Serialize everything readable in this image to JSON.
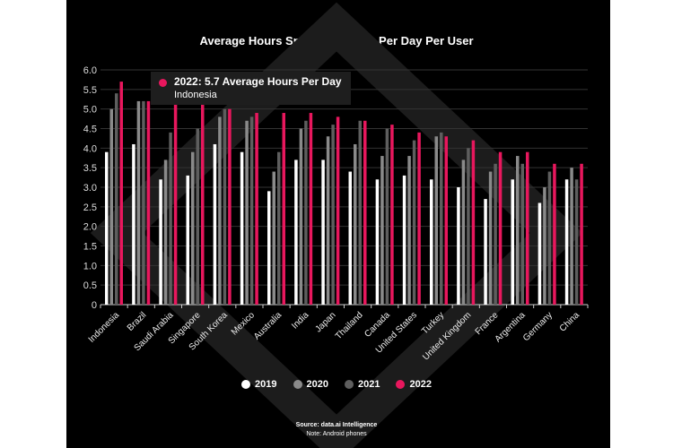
{
  "chart_data": {
    "type": "bar",
    "title": "Average Hours Spent on Mobile Per Day Per User",
    "xlabel": "",
    "ylabel": "",
    "ylim": [
      0,
      6
    ],
    "yticks": [
      "0",
      "0.5",
      "1.0",
      "1.5",
      "2.0",
      "2.5",
      "3.0",
      "3.5",
      "4.0",
      "4.5",
      "5.0",
      "5.5",
      "6.0"
    ],
    "categories": [
      "Indonesia",
      "Brazil",
      "Saudi Arabia",
      "Singapore",
      "South Korea",
      "Mexico",
      "Australia",
      "India",
      "Japan",
      "Thailand",
      "Canada",
      "United States",
      "Turkey",
      "United Kingdom",
      "France",
      "Argentina",
      "Germany",
      "China"
    ],
    "series": [
      {
        "name": "2019",
        "color": "#ffffff",
        "values": [
          3.9,
          4.1,
          3.2,
          3.3,
          4.1,
          3.9,
          2.9,
          3.7,
          3.7,
          3.4,
          3.2,
          3.3,
          3.2,
          3.0,
          2.7,
          3.2,
          2.6,
          3.2
        ]
      },
      {
        "name": "2020",
        "color": "#8a8a8a",
        "values": [
          5.0,
          5.2,
          3.7,
          3.9,
          4.8,
          4.7,
          3.4,
          4.5,
          4.3,
          4.1,
          3.8,
          3.8,
          4.3,
          3.7,
          3.4,
          3.8,
          3.0,
          3.5
        ]
      },
      {
        "name": "2021",
        "color": "#5e5e5e",
        "values": [
          5.4,
          5.2,
          4.4,
          4.5,
          5.0,
          4.8,
          3.9,
          4.7,
          4.6,
          4.7,
          4.5,
          4.2,
          4.4,
          4.0,
          3.6,
          3.6,
          3.4,
          3.2
        ]
      },
      {
        "name": "2022",
        "color": "#e8175d",
        "values": [
          5.7,
          5.2,
          5.2,
          5.2,
          5.0,
          4.9,
          4.9,
          4.9,
          4.8,
          4.7,
          4.6,
          4.4,
          4.3,
          4.2,
          3.9,
          3.9,
          3.6,
          3.6
        ]
      }
    ],
    "grid": true,
    "legend": "bottom",
    "tooltip": {
      "line1": "2022: 5.7 Average Hours Per Day",
      "line2": "Indonesia"
    },
    "source": "Source: data.ai Intelligence",
    "note": "Note: Android phones"
  }
}
